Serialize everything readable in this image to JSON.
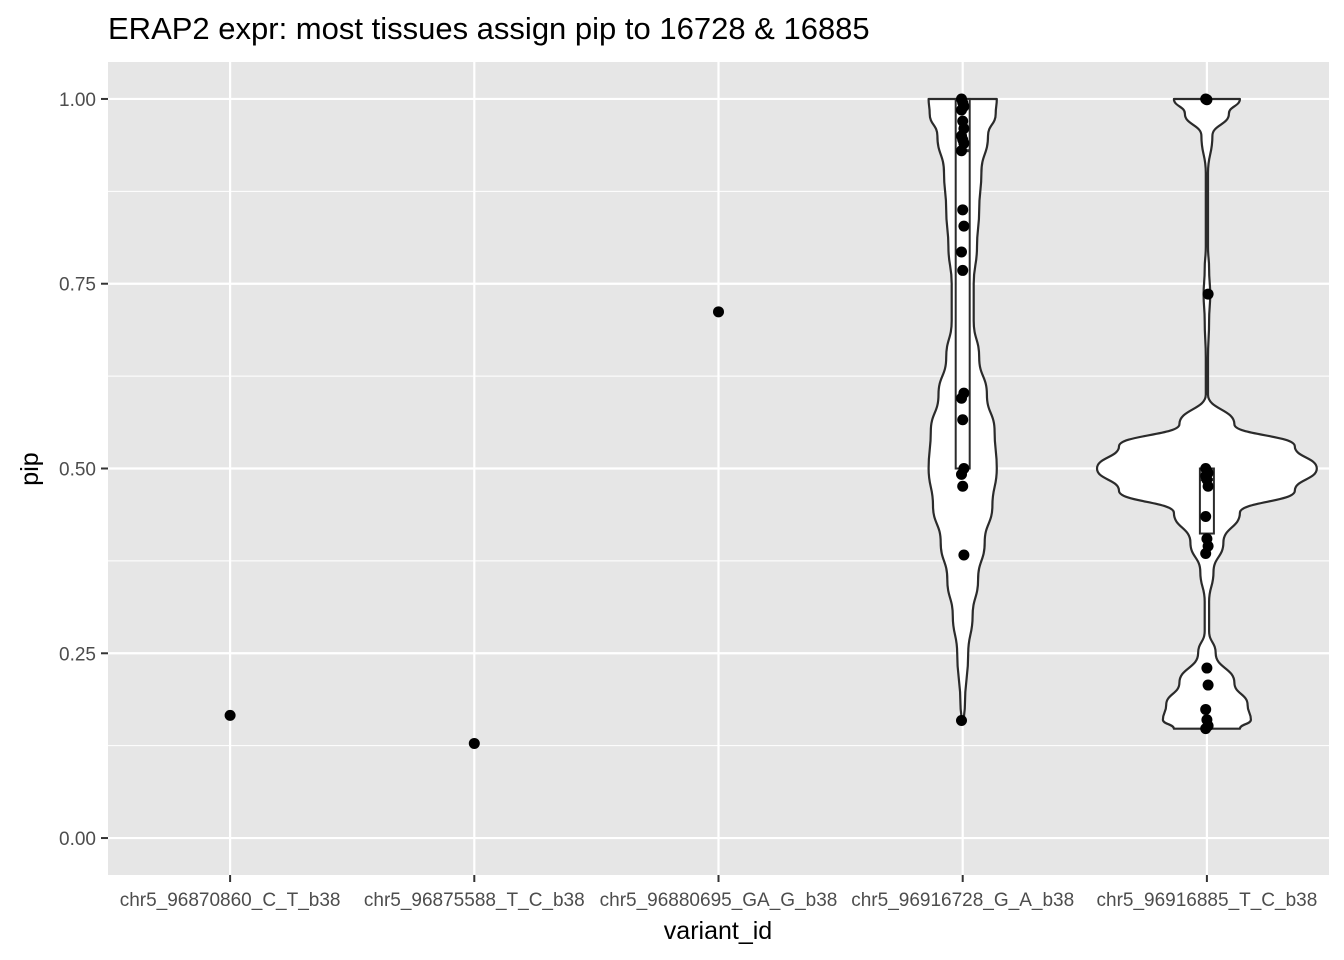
{
  "chart_data": {
    "type": "violin",
    "title": "ERAP2 expr: most tissues assign pip to 16728 & 16885",
    "xlabel": "variant_id",
    "ylabel": "pip",
    "ylim": [
      -0.05,
      1.05
    ],
    "yticks": [
      "0.00",
      "0.25",
      "0.50",
      "0.75",
      "1.00"
    ],
    "grid": true,
    "legend": "none",
    "colors": {
      "panel": "#e6e6e6",
      "grid": "#ffffff",
      "violin_fill": "#ffffff",
      "outline": "#2b2b2b",
      "point": "#000000"
    },
    "categories": [
      "chr5_96870860_C_T_b38",
      "chr5_96875588_T_C_b38",
      "chr5_96880695_GA_G_b38",
      "chr5_96916728_G_A_b38",
      "chr5_96916885_T_C_b38"
    ],
    "points": [
      [
        0.166
      ],
      [
        0.128
      ],
      [
        0.712
      ],
      [
        1.0,
        0.995,
        0.99,
        0.985,
        0.97,
        0.96,
        0.95,
        0.945,
        0.94,
        0.93,
        0.85,
        0.828,
        0.793,
        0.768,
        0.602,
        0.595,
        0.566,
        0.5,
        0.492,
        0.476,
        0.383,
        0.159
      ],
      [
        1.0,
        0.999,
        0.736,
        0.5,
        0.497,
        0.494,
        0.49,
        0.485,
        0.476,
        0.435,
        0.405,
        0.395,
        0.385,
        0.23,
        0.207,
        0.174,
        0.16,
        0.152,
        0.148
      ]
    ],
    "boxes": [
      null,
      null,
      null,
      {
        "lower": 0.5,
        "q1": 0.5,
        "median": 0.93,
        "q3": 1.0,
        "upper": 1.0
      },
      {
        "lower": 0.408,
        "q1": 0.412,
        "median": 0.485,
        "q3": 0.5,
        "upper": 0.5
      }
    ],
    "violins": [
      null,
      null,
      null,
      {
        "range": [
          0.159,
          1.0
        ],
        "profile": [
          [
            0.159,
            0.01
          ],
          [
            0.18,
            0.02
          ],
          [
            0.25,
            0.05
          ],
          [
            0.3,
            0.09
          ],
          [
            0.35,
            0.14
          ],
          [
            0.4,
            0.2
          ],
          [
            0.45,
            0.27
          ],
          [
            0.5,
            0.31
          ],
          [
            0.55,
            0.29
          ],
          [
            0.6,
            0.22
          ],
          [
            0.65,
            0.15
          ],
          [
            0.7,
            0.1
          ],
          [
            0.75,
            0.1
          ],
          [
            0.8,
            0.13
          ],
          [
            0.85,
            0.15
          ],
          [
            0.9,
            0.17
          ],
          [
            0.95,
            0.23
          ],
          [
            0.98,
            0.3
          ],
          [
            1.0,
            0.31
          ]
        ]
      },
      {
        "range": [
          0.148,
          1.0
        ],
        "profile": [
          [
            0.148,
            0.3
          ],
          [
            0.16,
            0.4
          ],
          [
            0.18,
            0.37
          ],
          [
            0.21,
            0.25
          ],
          [
            0.25,
            0.08
          ],
          [
            0.28,
            0.02
          ],
          [
            0.32,
            0.02
          ],
          [
            0.36,
            0.06
          ],
          [
            0.4,
            0.15
          ],
          [
            0.44,
            0.3
          ],
          [
            0.47,
            0.8
          ],
          [
            0.5,
            1.0
          ],
          [
            0.53,
            0.8
          ],
          [
            0.56,
            0.25
          ],
          [
            0.6,
            0.01
          ],
          [
            0.65,
            0.01
          ],
          [
            0.7,
            0.02
          ],
          [
            0.735,
            0.03
          ],
          [
            0.77,
            0.02
          ],
          [
            0.8,
            0.01
          ],
          [
            0.9,
            0.01
          ],
          [
            0.95,
            0.05
          ],
          [
            0.98,
            0.2
          ],
          [
            1.0,
            0.3
          ]
        ]
      }
    ]
  }
}
